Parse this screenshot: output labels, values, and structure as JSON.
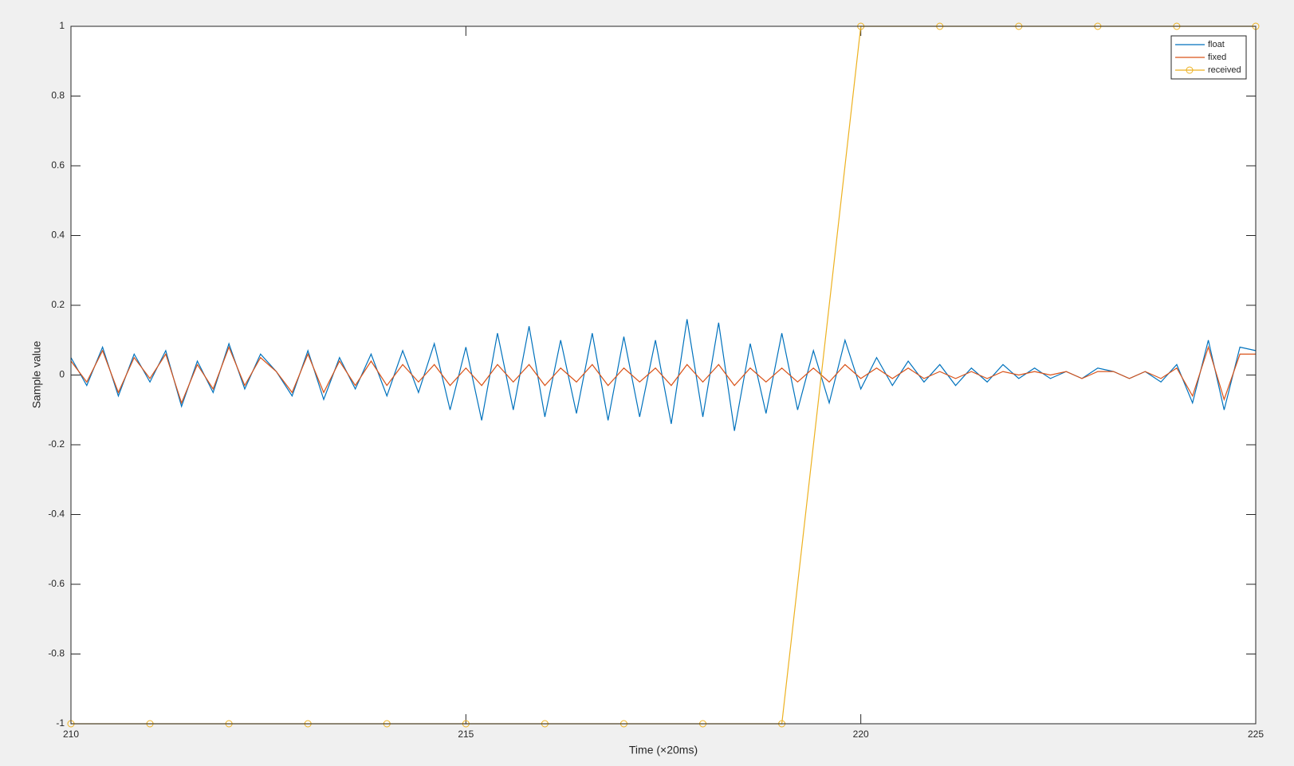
{
  "chart_data": {
    "type": "line",
    "xlabel": "Time (×20ms)",
    "ylabel": "Sample value",
    "xlim": [
      210,
      225
    ],
    "xticks": [
      210,
      215,
      220,
      225
    ],
    "ylim": [
      -1,
      1
    ],
    "yticks": [
      -1,
      -0.8,
      -0.6,
      -0.4,
      -0.2,
      0,
      0.2,
      0.4,
      0.6,
      0.8,
      1
    ],
    "legend": "upper right",
    "x": [
      210,
      210.2,
      210.4,
      210.6,
      210.8,
      211,
      211.2,
      211.4,
      211.6,
      211.8,
      212,
      212.2,
      212.4,
      212.6,
      212.8,
      213,
      213.2,
      213.4,
      213.6,
      213.8,
      214,
      214.2,
      214.4,
      214.6,
      214.8,
      215,
      215.2,
      215.4,
      215.6,
      215.8,
      216,
      216.2,
      216.4,
      216.6,
      216.8,
      217,
      217.2,
      217.4,
      217.6,
      217.8,
      218,
      218.2,
      218.4,
      218.6,
      218.8,
      219,
      219.2,
      219.4,
      219.6,
      219.8,
      220,
      220.2,
      220.4,
      220.6,
      220.8,
      221,
      221.2,
      221.4,
      221.6,
      221.8,
      222,
      222.2,
      222.4,
      222.6,
      222.8,
      223,
      223.2,
      223.4,
      223.6,
      223.8,
      224,
      224.2,
      224.4,
      224.6,
      224.8,
      225
    ],
    "series": [
      {
        "name": "float",
        "color": "#0072BD",
        "values": [
          0.05,
          -0.03,
          0.08,
          -0.06,
          0.06,
          -0.02,
          0.07,
          -0.09,
          0.04,
          -0.05,
          0.09,
          -0.04,
          0.06,
          0.01,
          -0.06,
          0.07,
          -0.07,
          0.05,
          -0.04,
          0.06,
          -0.06,
          0.07,
          -0.05,
          0.09,
          -0.1,
          0.08,
          -0.13,
          0.12,
          -0.1,
          0.14,
          -0.12,
          0.1,
          -0.11,
          0.12,
          -0.13,
          0.11,
          -0.12,
          0.1,
          -0.14,
          0.16,
          -0.12,
          0.15,
          -0.16,
          0.09,
          -0.11,
          0.12,
          -0.1,
          0.07,
          -0.08,
          0.1,
          -0.04,
          0.05,
          -0.03,
          0.04,
          -0.02,
          0.03,
          -0.03,
          0.02,
          -0.02,
          0.03,
          -0.01,
          0.02,
          -0.01,
          0.01,
          -0.01,
          0.02,
          0.01,
          -0.01,
          0.01,
          -0.02,
          0.03,
          -0.08,
          0.1,
          -0.1,
          0.08,
          0.07
        ]
      },
      {
        "name": "fixed",
        "color": "#D95319",
        "values": [
          0.04,
          -0.02,
          0.07,
          -0.05,
          0.05,
          -0.01,
          0.06,
          -0.08,
          0.03,
          -0.04,
          0.08,
          -0.03,
          0.05,
          0.01,
          -0.05,
          0.06,
          -0.05,
          0.04,
          -0.03,
          0.04,
          -0.03,
          0.03,
          -0.02,
          0.03,
          -0.03,
          0.02,
          -0.03,
          0.03,
          -0.02,
          0.03,
          -0.03,
          0.02,
          -0.02,
          0.03,
          -0.03,
          0.02,
          -0.02,
          0.02,
          -0.03,
          0.03,
          -0.02,
          0.03,
          -0.03,
          0.02,
          -0.02,
          0.02,
          -0.02,
          0.02,
          -0.02,
          0.03,
          -0.01,
          0.02,
          -0.01,
          0.02,
          -0.01,
          0.01,
          -0.01,
          0.01,
          -0.01,
          0.01,
          0,
          0.01,
          0,
          0.01,
          -0.01,
          0.01,
          0.01,
          -0.01,
          0.01,
          -0.01,
          0.02,
          -0.06,
          0.08,
          -0.07,
          0.06,
          0.06
        ]
      },
      {
        "name": "received",
        "color": "#EDB120",
        "marker": "circle",
        "x": [
          210,
          211,
          212,
          213,
          214,
          215,
          216,
          217,
          218,
          219,
          220,
          221,
          222,
          223,
          224,
          225
        ],
        "values": [
          -1,
          -1,
          -1,
          -1,
          -1,
          -1,
          -1,
          -1,
          -1,
          -1,
          1,
          1,
          1,
          1,
          1,
          1
        ]
      }
    ]
  }
}
